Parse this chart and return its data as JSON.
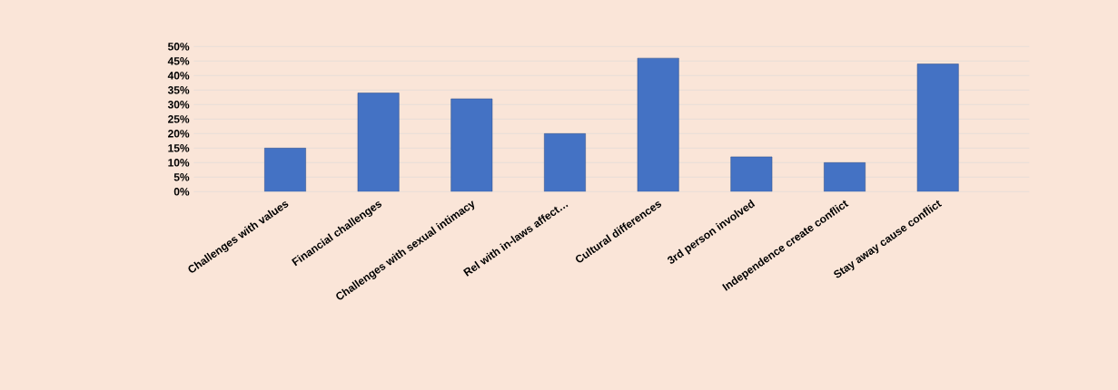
{
  "chart_data": {
    "type": "bar",
    "categories": [
      "Challenges with values",
      "Financial challenges",
      "Challenges with sexual intimacy",
      "Rel with in-laws affect…",
      "Cultural differences",
      "3rd person involved",
      "Independence create conflict",
      "Stay away cause conflict"
    ],
    "values": [
      15,
      34,
      32,
      20,
      46,
      12,
      10,
      44
    ],
    "color": "#4472c4",
    "ylim": [
      0,
      50
    ],
    "yticks": [
      {
        "value": 0,
        "label": "0%"
      },
      {
        "value": 5,
        "label": "5%"
      },
      {
        "value": 10,
        "label": "10%"
      },
      {
        "value": 15,
        "label": "15%"
      },
      {
        "value": 20,
        "label": "20%"
      },
      {
        "value": 25,
        "label": "25%"
      },
      {
        "value": 30,
        "label": "30%"
      },
      {
        "value": 35,
        "label": "35%"
      },
      {
        "value": 40,
        "label": "40%"
      },
      {
        "value": 45,
        "label": "45%"
      },
      {
        "value": 50,
        "label": "50%"
      }
    ],
    "grid": "y"
  }
}
